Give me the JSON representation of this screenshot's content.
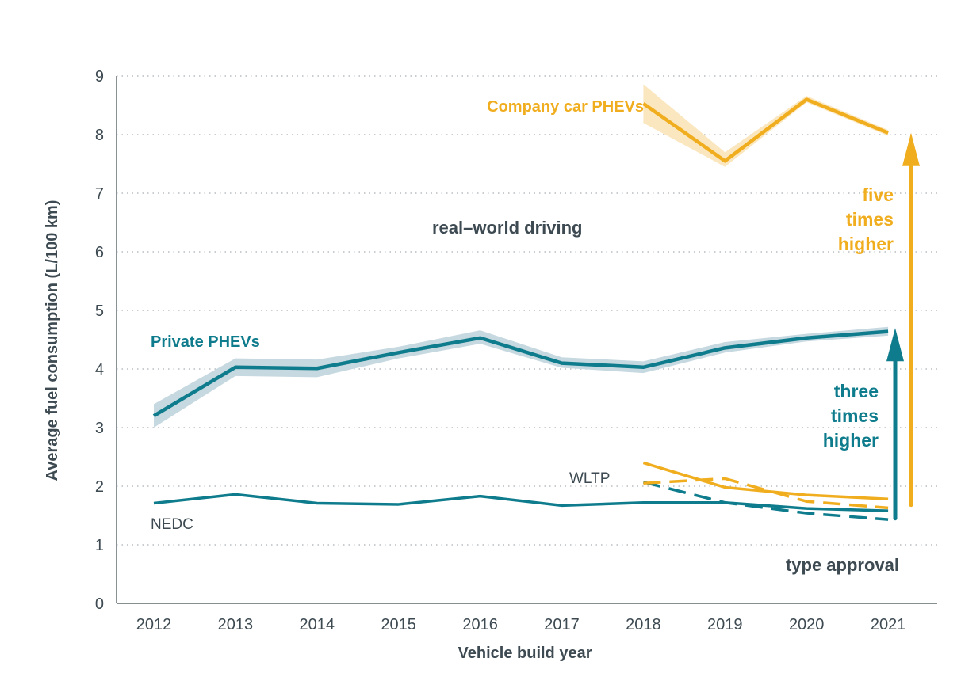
{
  "chart_data": {
    "type": "line",
    "xlabel": "Vehicle build year",
    "ylabel": "Average fuel consumption (L/100 km)",
    "ylim": [
      0,
      9
    ],
    "yticks": [
      "0",
      "1",
      "2",
      "3",
      "4",
      "5",
      "6",
      "7",
      "8",
      "9"
    ],
    "categories": [
      "2012",
      "2013",
      "2014",
      "2015",
      "2016",
      "2017",
      "2018",
      "2019",
      "2020",
      "2021"
    ],
    "grid": "horizontal dotted",
    "colors": {
      "teal": "#0e7c8c",
      "yellow": "#f0ad1e",
      "teal_band": "#c6d8e0",
      "yellow_band": "#fbe7bf",
      "text": "#3d4a52"
    },
    "series": [
      {
        "name": "Private PHEVs",
        "color": "teal",
        "style": "solid-thick",
        "x": [
          "2012",
          "2013",
          "2014",
          "2015",
          "2016",
          "2017",
          "2018",
          "2019",
          "2020",
          "2021"
        ],
        "values": [
          3.2,
          4.03,
          4.01,
          4.28,
          4.53,
          4.1,
          4.03,
          4.36,
          4.53,
          4.64
        ],
        "lower": [
          3.0,
          3.88,
          3.86,
          4.18,
          4.43,
          4.02,
          3.93,
          4.28,
          4.47,
          4.57
        ],
        "upper": [
          3.4,
          4.18,
          4.16,
          4.38,
          4.66,
          4.2,
          4.13,
          4.46,
          4.6,
          4.72
        ]
      },
      {
        "name": "Company car PHEVs",
        "color": "yellow",
        "style": "solid-thick",
        "x": [
          "2018",
          "2019",
          "2020",
          "2021"
        ],
        "values": [
          8.53,
          7.55,
          8.6,
          8.03
        ],
        "lower": [
          8.2,
          7.45,
          8.55,
          7.98
        ],
        "upper": [
          8.86,
          7.7,
          8.66,
          8.08
        ]
      },
      {
        "color": "teal",
        "style": "solid",
        "x": [
          "2012",
          "2013",
          "2014",
          "2015",
          "2016",
          "2017",
          "2018",
          "2019",
          "2020",
          "2021"
        ],
        "values": [
          1.71,
          1.86,
          1.71,
          1.69,
          1.83,
          1.67,
          1.72,
          1.72,
          1.62,
          1.58
        ]
      },
      {
        "color": "teal",
        "style": "dashed",
        "x": [
          "2018",
          "2019",
          "2020",
          "2021"
        ],
        "values": [
          2.07,
          1.72,
          1.54,
          1.43
        ]
      },
      {
        "color": "yellow",
        "style": "solid",
        "x": [
          "2018",
          "2019",
          "2020",
          "2021"
        ],
        "values": [
          2.4,
          1.98,
          1.85,
          1.78
        ]
      },
      {
        "color": "yellow",
        "style": "dashed",
        "x": [
          "2018",
          "2019",
          "2020",
          "2021"
        ],
        "values": [
          2.05,
          2.13,
          1.74,
          1.63
        ]
      }
    ],
    "annotations": {
      "company": "Company car PHEVs",
      "private": "Private PHEVs",
      "real_world": "real–world driving",
      "wltp": "WLTP",
      "nedc": "NEDC",
      "type_approval": "type approval",
      "three": [
        "three",
        "times",
        "higher"
      ],
      "five": [
        "five",
        "times",
        "higher"
      ]
    },
    "arrows": [
      {
        "color": "teal",
        "from": 1.45,
        "to": 4.7
      },
      {
        "color": "yellow",
        "from": 1.68,
        "to": 8.03
      }
    ]
  }
}
